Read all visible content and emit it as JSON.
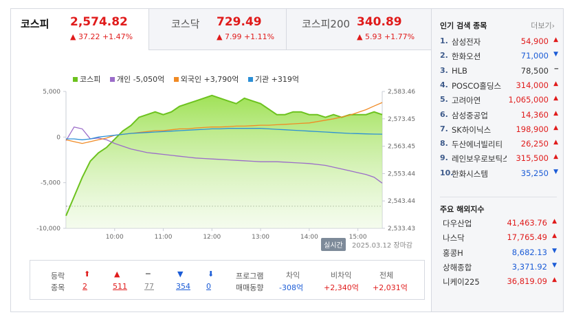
{
  "tabs": [
    {
      "name": "코스피",
      "value": "2,574.82",
      "change": "▲ 37.22 +1.47%",
      "active": true
    },
    {
      "name": "코스닥",
      "value": "729.49",
      "change": "▲ 7.99 +1.11%",
      "active": false
    },
    {
      "name": "코스피200",
      "value": "340.89",
      "change": "▲ 5.93 +1.77%",
      "active": false
    }
  ],
  "legend": [
    {
      "label": "코스피",
      "color": "#6cc21e"
    },
    {
      "label": "개인 -5,050억",
      "color": "#9b6cc9"
    },
    {
      "label": "외국인 +3,790억",
      "color": "#f08a24"
    },
    {
      "label": "기관 +319억",
      "color": "#2b8fd6"
    }
  ],
  "chart_data": {
    "type": "line",
    "title": "",
    "x": [
      "09:00",
      "09:10",
      "09:20",
      "09:30",
      "09:40",
      "09:50",
      "10:00",
      "10:10",
      "10:20",
      "10:30",
      "10:40",
      "10:50",
      "11:00",
      "11:10",
      "11:20",
      "11:30",
      "11:40",
      "11:50",
      "12:00",
      "12:10",
      "12:20",
      "12:30",
      "12:40",
      "12:50",
      "13:00",
      "13:10",
      "13:20",
      "13:30",
      "13:40",
      "13:50",
      "14:00",
      "14:10",
      "14:20",
      "14:30",
      "14:40",
      "14:50",
      "15:00",
      "15:10",
      "15:20",
      "15:30"
    ],
    "xticks": [
      "10:00",
      "11:00",
      "12:00",
      "13:00",
      "14:00",
      "15:00"
    ],
    "left_axis": {
      "label": "",
      "ticks": [
        "5,000",
        "0",
        "-5,000",
        "-10,000"
      ],
      "ylim": [
        -10000,
        5000
      ]
    },
    "right_axis": {
      "label": "",
      "ticks": [
        "2,583.46",
        "2,573.45",
        "2,563.45",
        "2,553.44",
        "2,543.44",
        "2,533.43"
      ],
      "ylim": [
        2533.43,
        2583.46
      ]
    },
    "reference_line": 2541.5,
    "series": [
      {
        "name": "코스피",
        "axis": "right",
        "color": "#6cc21e",
        "values": [
          2538,
          2545,
          2552,
          2558,
          2561,
          2563,
          2566,
          2569,
          2571,
          2574,
          2575,
          2576,
          2575,
          2576,
          2578,
          2579,
          2580,
          2581,
          2582,
          2581,
          2580,
          2579,
          2581,
          2580,
          2579,
          2577,
          2575,
          2575,
          2576,
          2576,
          2575,
          2575,
          2574,
          2575,
          2574,
          2575,
          2575,
          2575,
          2576,
          2575
        ]
      },
      {
        "name": "개인",
        "axis": "left",
        "color": "#9b6cc9",
        "values": [
          -400,
          1100,
          900,
          -200,
          -100,
          -300,
          -700,
          -1000,
          -1300,
          -1500,
          -1700,
          -1800,
          -1900,
          -2000,
          -2100,
          -2200,
          -2300,
          -2350,
          -2400,
          -2450,
          -2500,
          -2550,
          -2600,
          -2650,
          -2700,
          -2700,
          -2700,
          -2750,
          -2800,
          -2850,
          -2900,
          -3000,
          -3100,
          -3300,
          -3500,
          -3700,
          -3900,
          -4100,
          -4400,
          -5050
        ]
      },
      {
        "name": "외국인",
        "axis": "left",
        "color": "#f08a24",
        "values": [
          -300,
          -500,
          -700,
          -500,
          -300,
          -100,
          200,
          300,
          400,
          500,
          600,
          700,
          700,
          800,
          900,
          900,
          1000,
          1050,
          1100,
          1100,
          1150,
          1200,
          1200,
          1250,
          1300,
          1300,
          1350,
          1400,
          1450,
          1500,
          1550,
          1700,
          1850,
          2000,
          2200,
          2400,
          2700,
          3000,
          3400,
          3790
        ]
      },
      {
        "name": "기관",
        "axis": "left",
        "color": "#2b8fd6",
        "values": [
          -200,
          -200,
          -300,
          -200,
          0,
          100,
          200,
          300,
          400,
          450,
          500,
          550,
          600,
          650,
          700,
          750,
          800,
          850,
          900,
          900,
          950,
          950,
          950,
          950,
          950,
          900,
          850,
          800,
          750,
          700,
          650,
          600,
          550,
          500,
          450,
          400,
          380,
          350,
          330,
          319
        ]
      }
    ]
  },
  "meta": {
    "realtime": "실시간",
    "date": "2025.03.12",
    "status": "장마감"
  },
  "stats": {
    "label1": "등락",
    "label2": "종목",
    "counts": [
      {
        "glyph": "⬆",
        "value": "2",
        "color": "#e01b1b"
      },
      {
        "glyph": "▲",
        "value": "511",
        "color": "#e01b1b"
      },
      {
        "glyph": "━",
        "value": "77",
        "color": "#888888"
      },
      {
        "glyph": "▼",
        "value": "354",
        "color": "#1a5bd6"
      },
      {
        "glyph": "⬇",
        "value": "0",
        "color": "#1a5bd6"
      }
    ],
    "program_label1": "프로그램",
    "program_label2": "매매동향",
    "program": [
      {
        "label": "차익",
        "value": "-308억",
        "color": "#1a5bd6"
      },
      {
        "label": "비차익",
        "value": "+2,340억",
        "color": "#e01b1b"
      },
      {
        "label": "전체",
        "value": "+2,031억",
        "color": "#e01b1b"
      }
    ]
  },
  "side": {
    "popular_title": "인기 검색 종목",
    "more": "더보기",
    "popular": [
      {
        "no": "1.",
        "name": "삼성전자",
        "price": "54,900",
        "dir": "up"
      },
      {
        "no": "2.",
        "name": "한화오션",
        "price": "71,000",
        "dir": "down"
      },
      {
        "no": "3.",
        "name": "HLB",
        "price": "78,500",
        "dir": "flat"
      },
      {
        "no": "4.",
        "name": "POSCO홀딩스",
        "price": "314,000",
        "dir": "up"
      },
      {
        "no": "5.",
        "name": "고려아연",
        "price": "1,065,000",
        "dir": "up"
      },
      {
        "no": "6.",
        "name": "삼성중공업",
        "price": "14,360",
        "dir": "up"
      },
      {
        "no": "7.",
        "name": "SK하이닉스",
        "price": "198,900",
        "dir": "up"
      },
      {
        "no": "8.",
        "name": "두산에너빌리티",
        "price": "26,250",
        "dir": "up"
      },
      {
        "no": "9.",
        "name": "레인보우로보틱스",
        "price": "315,500",
        "dir": "up"
      },
      {
        "no": "10.",
        "name": "한화시스템",
        "price": "35,250",
        "dir": "down"
      }
    ],
    "world_title": "주요 해외지수",
    "world": [
      {
        "name": "다우산업",
        "price": "41,463.76",
        "dir": "up"
      },
      {
        "name": "나스닥",
        "price": "17,765.49",
        "dir": "up"
      },
      {
        "name": "홍콩H",
        "price": "8,682.13",
        "dir": "down"
      },
      {
        "name": "상해종합",
        "price": "3,371.92",
        "dir": "down"
      },
      {
        "name": "니케이225",
        "price": "36,819.09",
        "dir": "up"
      }
    ]
  }
}
